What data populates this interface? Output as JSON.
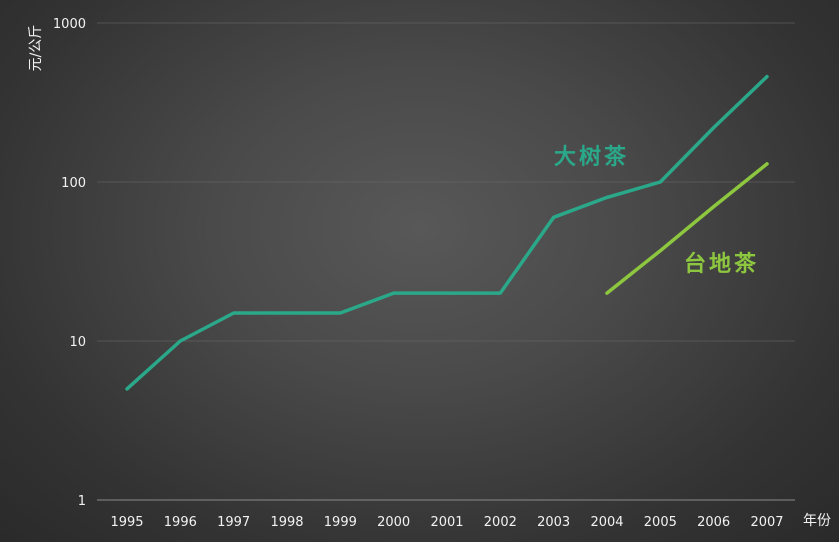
{
  "chart_data": {
    "type": "line",
    "title": "",
    "xlabel": "年份",
    "ylabel": "元/公斤",
    "yscale": "log",
    "ylim": [
      1,
      1000
    ],
    "yticks": [
      "1",
      "10",
      "100",
      "1000"
    ],
    "x": [
      "1995",
      "1996",
      "1997",
      "1998",
      "1999",
      "2000",
      "2001",
      "2002",
      "2003",
      "2004",
      "2005",
      "2006",
      "2007"
    ],
    "grid": true,
    "legend": "none",
    "series": [
      {
        "name": "大树茶",
        "color": "#2aa889",
        "values": [
          5,
          10,
          15,
          15,
          15,
          20,
          20,
          20,
          60,
          80,
          100,
          220,
          460
        ]
      },
      {
        "name": "台地茶",
        "color": "#8dc63f",
        "values": [
          null,
          null,
          null,
          null,
          null,
          null,
          null,
          null,
          null,
          20,
          37,
          70,
          130
        ]
      }
    ]
  }
}
